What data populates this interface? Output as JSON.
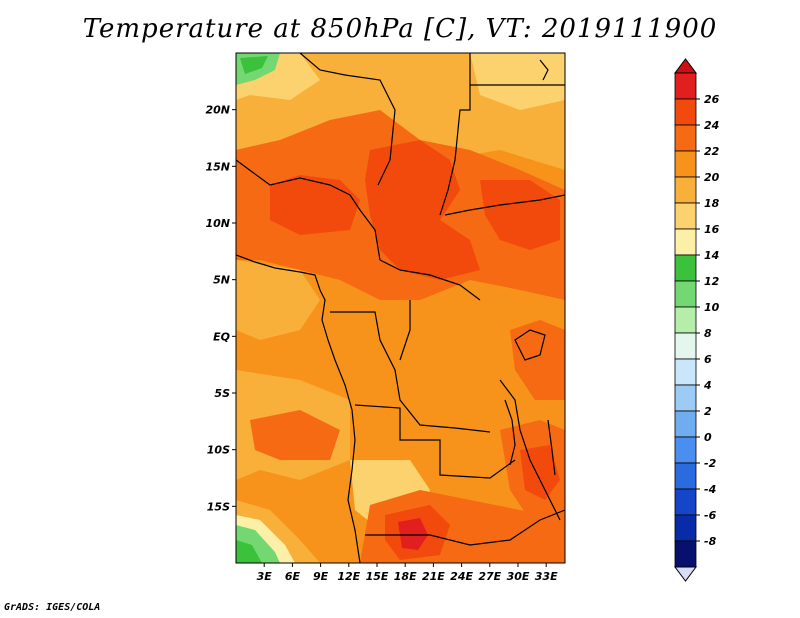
{
  "title": "Temperature at 850hPa [C], VT: 2019111900",
  "footer": "GrADS: IGES/COLA",
  "map": {
    "lat_labels": [
      "20N",
      "15N",
      "10N",
      "5N",
      "EQ",
      "5S",
      "10S",
      "15S"
    ],
    "lon_labels": [
      "3E",
      "6E",
      "9E",
      "12E",
      "15E",
      "18E",
      "21E",
      "24E",
      "27E",
      "30E",
      "33E"
    ],
    "lat_values": [
      20,
      15,
      10,
      5,
      0,
      -5,
      -10,
      -15
    ],
    "lon_values": [
      3,
      6,
      9,
      12,
      15,
      18,
      21,
      24,
      27,
      30,
      33
    ],
    "lat_range": [
      -20,
      25
    ],
    "lon_range": [
      0,
      35
    ]
  },
  "colorbar": {
    "levels": [
      "26",
      "24",
      "22",
      "20",
      "18",
      "16",
      "14",
      "12",
      "10",
      "8",
      "6",
      "4",
      "2",
      "0",
      "-2",
      "-4",
      "-6",
      "-8"
    ],
    "colors": [
      "#e11f1f",
      "#f24a0c",
      "#f56a12",
      "#f7931a",
      "#f9b03a",
      "#fbd26e",
      "#fcf0a8",
      "#3bc13b",
      "#74d872",
      "#b5eeaa",
      "#e4f7ee",
      "#c9e6fa",
      "#9ccbf5",
      "#6fadf0",
      "#4a8ff0",
      "#2a6be0",
      "#1546c9",
      "#0a2ba8",
      "#08106d"
    ],
    "top_arrow_color": "#cc1010",
    "bottom_arrow_color": "#d8ddf7"
  },
  "palette": {
    "t24": "#f24a0c",
    "t22": "#f56a12",
    "t20": "#f7931a",
    "t18": "#f9b03a",
    "t16": "#fbd26e",
    "t14": "#fcf0a8",
    "t26": "#e11f1f",
    "green": "#74d872",
    "green_dark": "#3bc13b",
    "border": "#000000"
  }
}
